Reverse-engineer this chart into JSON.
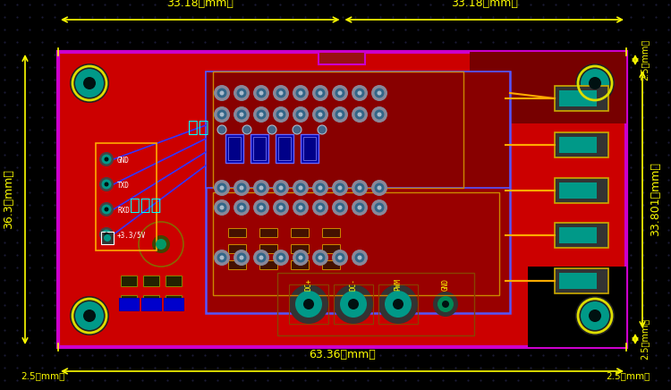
{
  "bg_color": "#000000",
  "board_color": "#cc0000",
  "board_border_color": "#cc00cc",
  "board_lw": 2.5,
  "teal_color": "#009988",
  "teal_ring_color": "#dddd00",
  "dim_color": "#ffff00",
  "dim_fontsize": 9,
  "blue_trace": "#3333ff",
  "orange_line": "#ffaa00",
  "dark_red": "#880000",
  "pin_outer": "#888899",
  "pin_inner": "#336688",
  "dim_top_left": "33.18（mm）",
  "dim_top_right": "33.18（mm）",
  "dim_bottom": "63.36（mm）",
  "dim_left": "36.3（mm）",
  "dim_right": "33.801（mm）",
  "corner_25": "2.5（mm）",
  "bottom_labels": [
    "DC+",
    "DC-",
    "PWM",
    "GND"
  ],
  "left_labels": [
    "GND",
    "TXD",
    "RXD",
    "+3.3/5V"
  ],
  "left_colors": [
    "#ffaa00",
    "#4466ff",
    "#ff3333",
    "#ffff00"
  ],
  "chinese_freq": "频率",
  "chinese_duty": "占空比"
}
